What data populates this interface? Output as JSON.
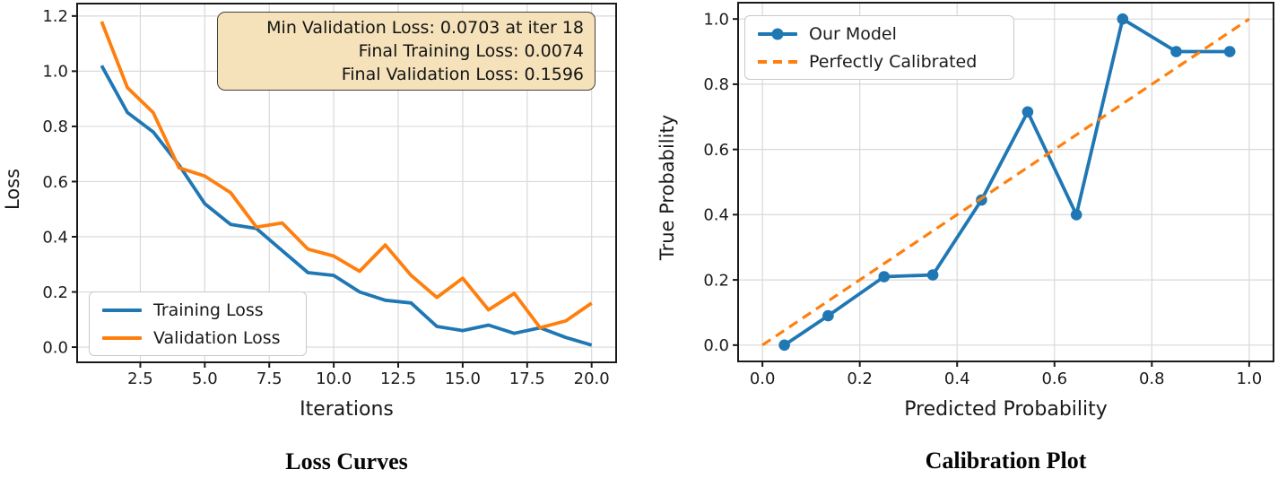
{
  "figure": {
    "background": "#ffffff"
  },
  "colors": {
    "series_blue": "#1f77b4",
    "series_orange": "#ff7f0e",
    "grid": "#d9d9d9",
    "spine": "#1a1a1a",
    "tick_text": "#1c1c1c",
    "annotation_bg": "#f5e1ba",
    "annotation_border": "#43403a",
    "legend_border": "#c9c9c9"
  },
  "chart_data": [
    {
      "type": "line",
      "title": "Loss Curves",
      "xlabel": "Iterations",
      "ylabel": "Loss",
      "grid": true,
      "legend_position": "lower-left",
      "xlim": [
        0.05,
        20.95
      ],
      "ylim": [
        -0.055,
        1.245
      ],
      "xticks": [
        "2.5",
        "5.0",
        "7.5",
        "10.0",
        "12.5",
        "15.0",
        "17.5",
        "20.0"
      ],
      "yticks": [
        "0.0",
        "0.2",
        "0.4",
        "0.6",
        "0.8",
        "1.0",
        "1.2"
      ],
      "series": [
        {
          "name": "Training Loss",
          "color": "#1f77b4",
          "line": "solid",
          "markers": false,
          "x": [
            1,
            2,
            3,
            4,
            5,
            6,
            7,
            8,
            9,
            10,
            11,
            12,
            13,
            14,
            15,
            16,
            17,
            18,
            19,
            20
          ],
          "y": [
            1.02,
            0.85,
            0.78,
            0.66,
            0.52,
            0.445,
            0.43,
            0.35,
            0.27,
            0.26,
            0.2,
            0.17,
            0.16,
            0.075,
            0.06,
            0.08,
            0.05,
            0.07,
            0.035,
            0.0074
          ]
        },
        {
          "name": "Validation Loss",
          "color": "#ff7f0e",
          "line": "solid",
          "markers": false,
          "x": [
            1,
            2,
            3,
            4,
            5,
            6,
            7,
            8,
            9,
            10,
            11,
            12,
            13,
            14,
            15,
            16,
            17,
            18,
            19,
            20
          ],
          "y": [
            1.18,
            0.94,
            0.85,
            0.65,
            0.62,
            0.56,
            0.435,
            0.45,
            0.355,
            0.33,
            0.275,
            0.37,
            0.26,
            0.18,
            0.25,
            0.135,
            0.195,
            0.0703,
            0.095,
            0.1596
          ]
        }
      ],
      "annotation": {
        "lines": [
          "Min Validation Loss: 0.0703 at iter 18",
          "Final Training Loss: 0.0074",
          "Final Validation Loss: 0.1596"
        ]
      }
    },
    {
      "type": "line",
      "title": "Calibration Plot",
      "xlabel": "Predicted Probability",
      "ylabel": "True Probability",
      "grid": true,
      "legend_position": "upper-left",
      "xlim": [
        -0.05,
        1.05
      ],
      "ylim": [
        -0.05,
        1.05
      ],
      "xticks": [
        "0.0",
        "0.2",
        "0.4",
        "0.6",
        "0.8",
        "1.0"
      ],
      "yticks": [
        "0.0",
        "0.2",
        "0.4",
        "0.6",
        "0.8",
        "1.0"
      ],
      "series": [
        {
          "name": "Our Model",
          "color": "#1f77b4",
          "line": "solid",
          "markers": true,
          "x": [
            0.045,
            0.135,
            0.25,
            0.35,
            0.45,
            0.545,
            0.645,
            0.74,
            0.85,
            0.96
          ],
          "y": [
            0.0,
            0.09,
            0.21,
            0.215,
            0.445,
            0.715,
            0.4,
            1.0,
            0.9,
            0.9
          ]
        },
        {
          "name": "Perfectly Calibrated",
          "color": "#ff7f0e",
          "line": "dashed",
          "markers": false,
          "x": [
            0.0,
            1.0
          ],
          "y": [
            0.0,
            1.0
          ]
        }
      ]
    }
  ]
}
